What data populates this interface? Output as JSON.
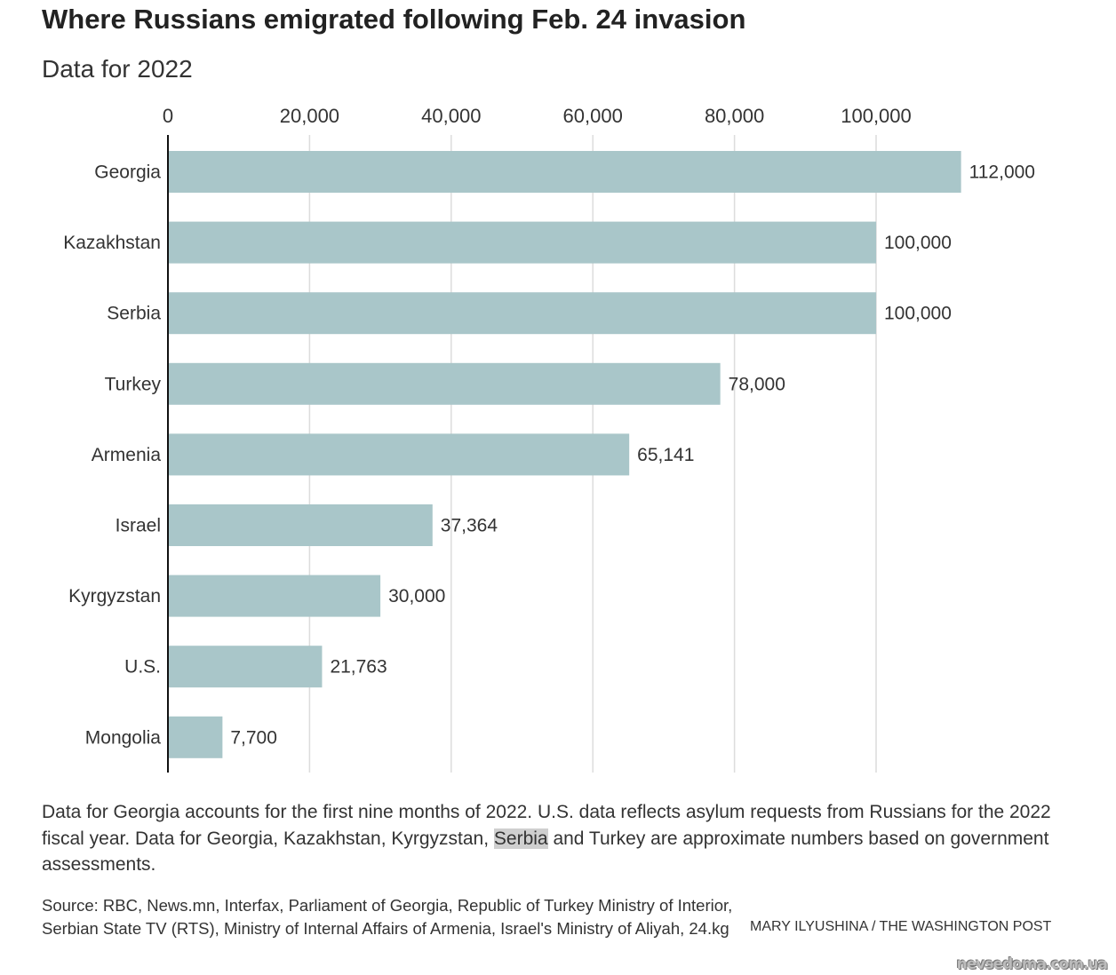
{
  "chart_data": {
    "type": "bar",
    "orientation": "horizontal",
    "title": "Where Russians emigrated following Feb. 24 invasion",
    "subtitle": "Data for 2022",
    "categories": [
      "Georgia",
      "Kazakhstan",
      "Serbia",
      "Turkey",
      "Armenia",
      "Israel",
      "Kyrgyzstan",
      "U.S.",
      "Mongolia"
    ],
    "values": [
      112000,
      100000,
      100000,
      78000,
      65141,
      37364,
      30000,
      21763,
      7700
    ],
    "value_labels": [
      "112,000",
      "100,000",
      "100,000",
      "78,000",
      "65,141",
      "37,364",
      "30,000",
      "21,763",
      "7,700"
    ],
    "xticks": [
      0,
      20000,
      40000,
      60000,
      80000,
      100000
    ],
    "xtick_labels": [
      "0",
      "20,000",
      "40,000",
      "60,000",
      "80,000",
      "100,000"
    ],
    "xlim": [
      0,
      112000
    ],
    "grid": true,
    "xaxis_position": "top",
    "bar_color": "#a9c6c9"
  },
  "note": {
    "before": "Data for Georgia accounts for the first nine months of 2022. U.S. data reflects asylum requests from Russians for the 2022 fiscal year. Data for Georgia, Kazakhstan, Kyrgyzstan, ",
    "highlight": "Serbia",
    "after": " and Turkey are approximate numbers based on government assessments."
  },
  "source": "Source: RBC, News.mn, Interfax, Parliament of Georgia, Republic of Turkey Ministry of Interior, Serbian State TV (RTS), Ministry of Internal Affairs of Armenia, Israel's Ministry of Aliyah, 24.kg",
  "credit": "MARY ILYUSHINA / THE WASHINGTON POST",
  "watermark": "nevsedoma.com.ua"
}
